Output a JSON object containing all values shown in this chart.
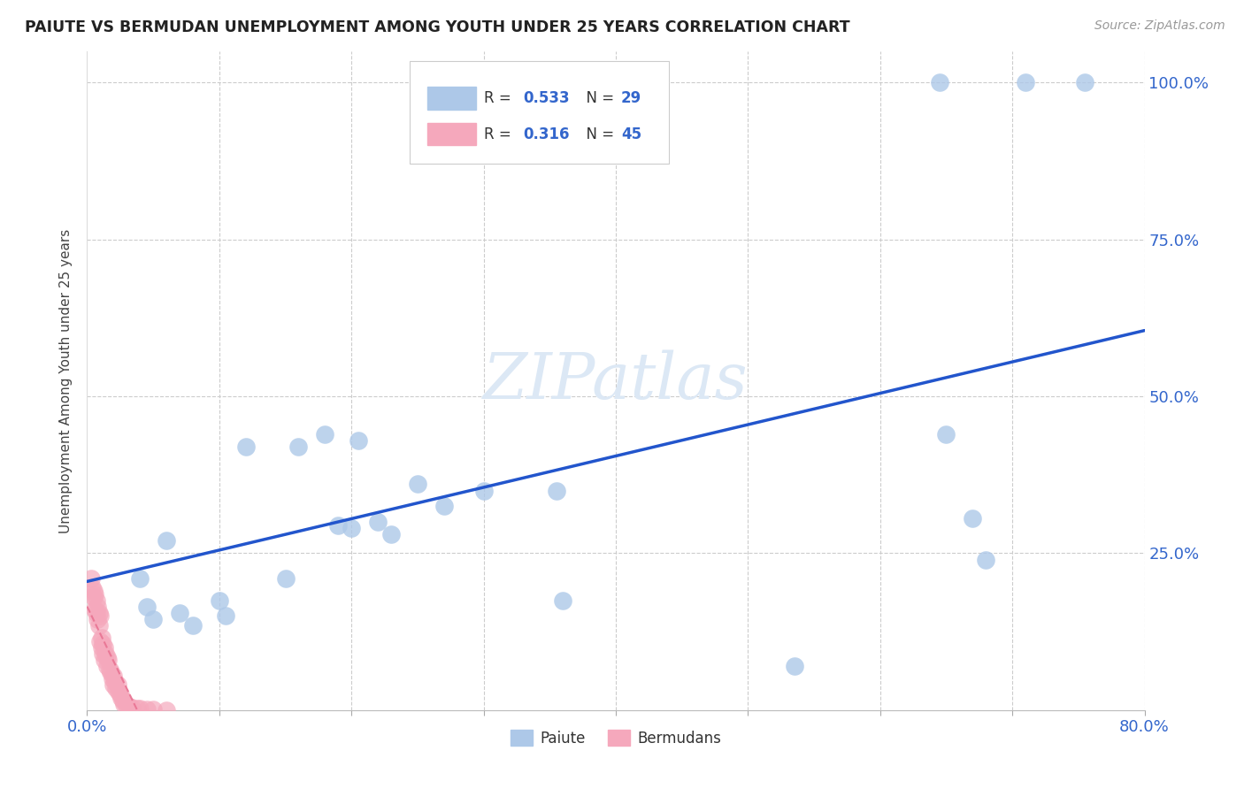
{
  "title": "PAIUTE VS BERMUDAN UNEMPLOYMENT AMONG YOUTH UNDER 25 YEARS CORRELATION CHART",
  "source": "Source: ZipAtlas.com",
  "ylabel": "Unemployment Among Youth under 25 years",
  "xlim": [
    0,
    0.8
  ],
  "ylim": [
    0,
    1.05
  ],
  "paiute_R": "0.533",
  "paiute_N": "29",
  "bermudan_R": "0.316",
  "bermudan_N": "45",
  "paiute_color": "#adc8e8",
  "bermudan_color": "#f5a8bc",
  "paiute_line_color": "#2255cc",
  "bermudan_line_color": "#e87090",
  "watermark_color": "#dce8f5",
  "grid_color": "#cccccc",
  "paiute_x": [
    0.645,
    0.71,
    0.755,
    0.04,
    0.045,
    0.05,
    0.06,
    0.07,
    0.08,
    0.1,
    0.105,
    0.12,
    0.15,
    0.16,
    0.18,
    0.19,
    0.2,
    0.205,
    0.22,
    0.23,
    0.25,
    0.27,
    0.3,
    0.355,
    0.36,
    0.535,
    0.65,
    0.67,
    0.68
  ],
  "paiute_y": [
    1.0,
    1.0,
    1.0,
    0.21,
    0.165,
    0.145,
    0.27,
    0.155,
    0.135,
    0.175,
    0.15,
    0.42,
    0.21,
    0.42,
    0.44,
    0.295,
    0.29,
    0.43,
    0.3,
    0.28,
    0.36,
    0.325,
    0.35,
    0.35,
    0.175,
    0.07,
    0.44,
    0.305,
    0.24
  ],
  "bermudan_x": [
    0.003,
    0.004,
    0.005,
    0.005,
    0.006,
    0.006,
    0.007,
    0.007,
    0.008,
    0.008,
    0.009,
    0.009,
    0.01,
    0.01,
    0.011,
    0.011,
    0.012,
    0.012,
    0.013,
    0.013,
    0.014,
    0.015,
    0.015,
    0.016,
    0.017,
    0.018,
    0.019,
    0.02,
    0.02,
    0.021,
    0.022,
    0.023,
    0.024,
    0.025,
    0.026,
    0.027,
    0.028,
    0.03,
    0.032,
    0.034,
    0.038,
    0.04,
    0.045,
    0.05,
    0.06
  ],
  "bermudan_y": [
    0.21,
    0.195,
    0.19,
    0.18,
    0.185,
    0.16,
    0.175,
    0.155,
    0.165,
    0.145,
    0.155,
    0.135,
    0.15,
    0.11,
    0.115,
    0.1,
    0.105,
    0.09,
    0.1,
    0.08,
    0.09,
    0.085,
    0.07,
    0.08,
    0.065,
    0.06,
    0.05,
    0.055,
    0.04,
    0.045,
    0.035,
    0.04,
    0.03,
    0.025,
    0.02,
    0.015,
    0.01,
    0.008,
    0.005,
    0.004,
    0.003,
    0.002,
    0.001,
    0.001,
    0.0
  ]
}
